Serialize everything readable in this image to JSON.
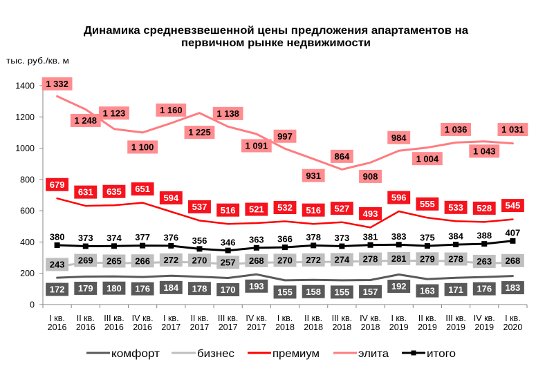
{
  "chart_data": {
    "type": "line",
    "title": [
      "Динамика средневзвешенной цены предложения апартаментов на",
      "первичном рынке недвижимости"
    ],
    "xlabel": "",
    "ylabel": "тыс. руб./кв. м",
    "ylim": [
      0,
      1400
    ],
    "yticks": [
      0,
      200,
      400,
      600,
      800,
      1000,
      1200,
      1400
    ],
    "grid": false,
    "legend": "bottom",
    "data_labels": true,
    "categories": [
      "I кв. 2016",
      "II кв. 2016",
      "III кв. 2016",
      "IV кв. 2016",
      "I кв. 2017",
      "II кв. 2017",
      "III кв. 2017",
      "IV кв. 2017",
      "I кв. 2018",
      "II кв. 2018",
      "III кв. 2018",
      "IV кв. 2018",
      "I кв. 2019",
      "II кв. 2019",
      "III кв. 2019",
      "IV кв. 2019",
      "I кв. 2020"
    ],
    "series": [
      {
        "name": "комфорт",
        "color": "#595959",
        "label_bg": "#595959",
        "label_text": "#FFFFFF",
        "marker": "none",
        "values": [
          172,
          179,
          180,
          176,
          184,
          178,
          170,
          193,
          155,
          158,
          155,
          157,
          192,
          163,
          171,
          176,
          183
        ]
      },
      {
        "name": "бизнес",
        "color": "#BFBFBF",
        "label_bg": "#BFBFBF",
        "label_text": "#000000",
        "marker": "none",
        "values": [
          243,
          269,
          265,
          266,
          272,
          270,
          257,
          268,
          270,
          272,
          274,
          278,
          281,
          279,
          278,
          263,
          268
        ]
      },
      {
        "name": "премиум",
        "color": "#FF0000",
        "label_bg": "#F5141E",
        "label_text": "#FFFFFF",
        "marker": "none",
        "values": [
          679,
          631,
          635,
          651,
          594,
          537,
          516,
          521,
          532,
          516,
          527,
          493,
          596,
          555,
          533,
          528,
          545
        ]
      },
      {
        "name": "элита",
        "color": "#FF7C80",
        "label_bg": "#FF8C8F",
        "label_text": "#000000",
        "marker": "none",
        "values": [
          1332,
          1248,
          1123,
          1100,
          1160,
          1225,
          1138,
          1091,
          997,
          931,
          864,
          908,
          984,
          1004,
          1036,
          1043,
          1031
        ]
      },
      {
        "name": "итого",
        "color": "#000000",
        "label_bg": null,
        "label_text": "#000000",
        "marker": "square",
        "values": [
          380,
          373,
          374,
          377,
          376,
          356,
          346,
          363,
          366,
          378,
          373,
          381,
          383,
          375,
          384,
          388,
          407
        ]
      }
    ]
  }
}
